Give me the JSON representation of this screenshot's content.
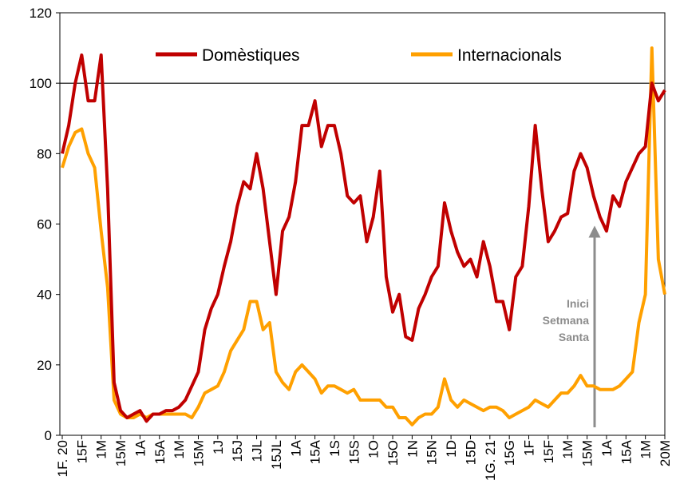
{
  "chart_data": {
    "type": "line",
    "categories": [
      "1F. 20",
      null,
      null,
      "15F",
      null,
      null,
      "1M",
      null,
      null,
      "15M",
      null,
      null,
      "1A",
      null,
      null,
      "15A",
      null,
      null,
      "1M",
      null,
      null,
      "15M",
      null,
      null,
      "1J",
      null,
      null,
      "15J",
      null,
      null,
      "1JL",
      null,
      null,
      "15JL",
      null,
      null,
      "1A",
      null,
      null,
      "15A",
      null,
      null,
      "1S",
      null,
      null,
      "15S",
      null,
      null,
      "1O",
      null,
      null,
      "15O",
      null,
      null,
      "1N",
      null,
      null,
      "15N",
      null,
      null,
      "1D",
      null,
      null,
      "15D",
      null,
      null,
      "1G. 21",
      null,
      null,
      "15G",
      null,
      null,
      "1F",
      null,
      null,
      "15F",
      null,
      null,
      "1M",
      null,
      null,
      "15M",
      null,
      null,
      "1A",
      null,
      null,
      "15A",
      null,
      null,
      "1M",
      null,
      null,
      "20M"
    ],
    "series": [
      {
        "name": "Domèstiques",
        "color": "#c00000",
        "values": [
          80,
          88,
          100,
          108,
          95,
          95,
          108,
          70,
          15,
          7,
          5,
          6,
          7,
          4,
          6,
          6,
          7,
          7,
          8,
          10,
          14,
          18,
          30,
          36,
          40,
          48,
          55,
          65,
          72,
          70,
          80,
          70,
          55,
          40,
          58,
          62,
          72,
          88,
          88,
          95,
          82,
          88,
          88,
          80,
          68,
          66,
          68,
          55,
          62,
          75,
          45,
          35,
          40,
          28,
          27,
          36,
          40,
          45,
          48,
          66,
          58,
          52,
          48,
          50,
          45,
          55,
          48,
          38,
          38,
          30,
          45,
          48,
          65,
          88,
          70,
          55,
          58,
          62,
          63,
          75,
          80,
          76,
          68,
          62,
          58,
          68,
          65,
          72,
          76,
          80,
          82,
          100,
          95,
          98
        ]
      },
      {
        "name": "Internacionals",
        "color": "#ffa000",
        "values": [
          76,
          82,
          86,
          87,
          80,
          76,
          58,
          42,
          10,
          6,
          5,
          5,
          6,
          5,
          6,
          6,
          6,
          6,
          6,
          6,
          5,
          8,
          12,
          13,
          14,
          18,
          24,
          27,
          30,
          38,
          38,
          30,
          32,
          18,
          15,
          13,
          18,
          20,
          18,
          16,
          12,
          14,
          14,
          13,
          12,
          13,
          10,
          10,
          10,
          10,
          8,
          8,
          5,
          5,
          3,
          5,
          6,
          6,
          8,
          16,
          10,
          8,
          10,
          9,
          8,
          7,
          8,
          8,
          7,
          5,
          6,
          7,
          8,
          10,
          9,
          8,
          10,
          12,
          12,
          14,
          17,
          14,
          14,
          13,
          13,
          13,
          14,
          16,
          18,
          32,
          40,
          110,
          50,
          40
        ]
      }
    ],
    "ylim": [
      0,
      120
    ],
    "yticks": [
      0,
      20,
      40,
      60,
      80,
      100,
      120
    ],
    "reference_line": 100,
    "annotation": [
      "Inici",
      "Setmana",
      "Santa"
    ],
    "legend": "top"
  }
}
